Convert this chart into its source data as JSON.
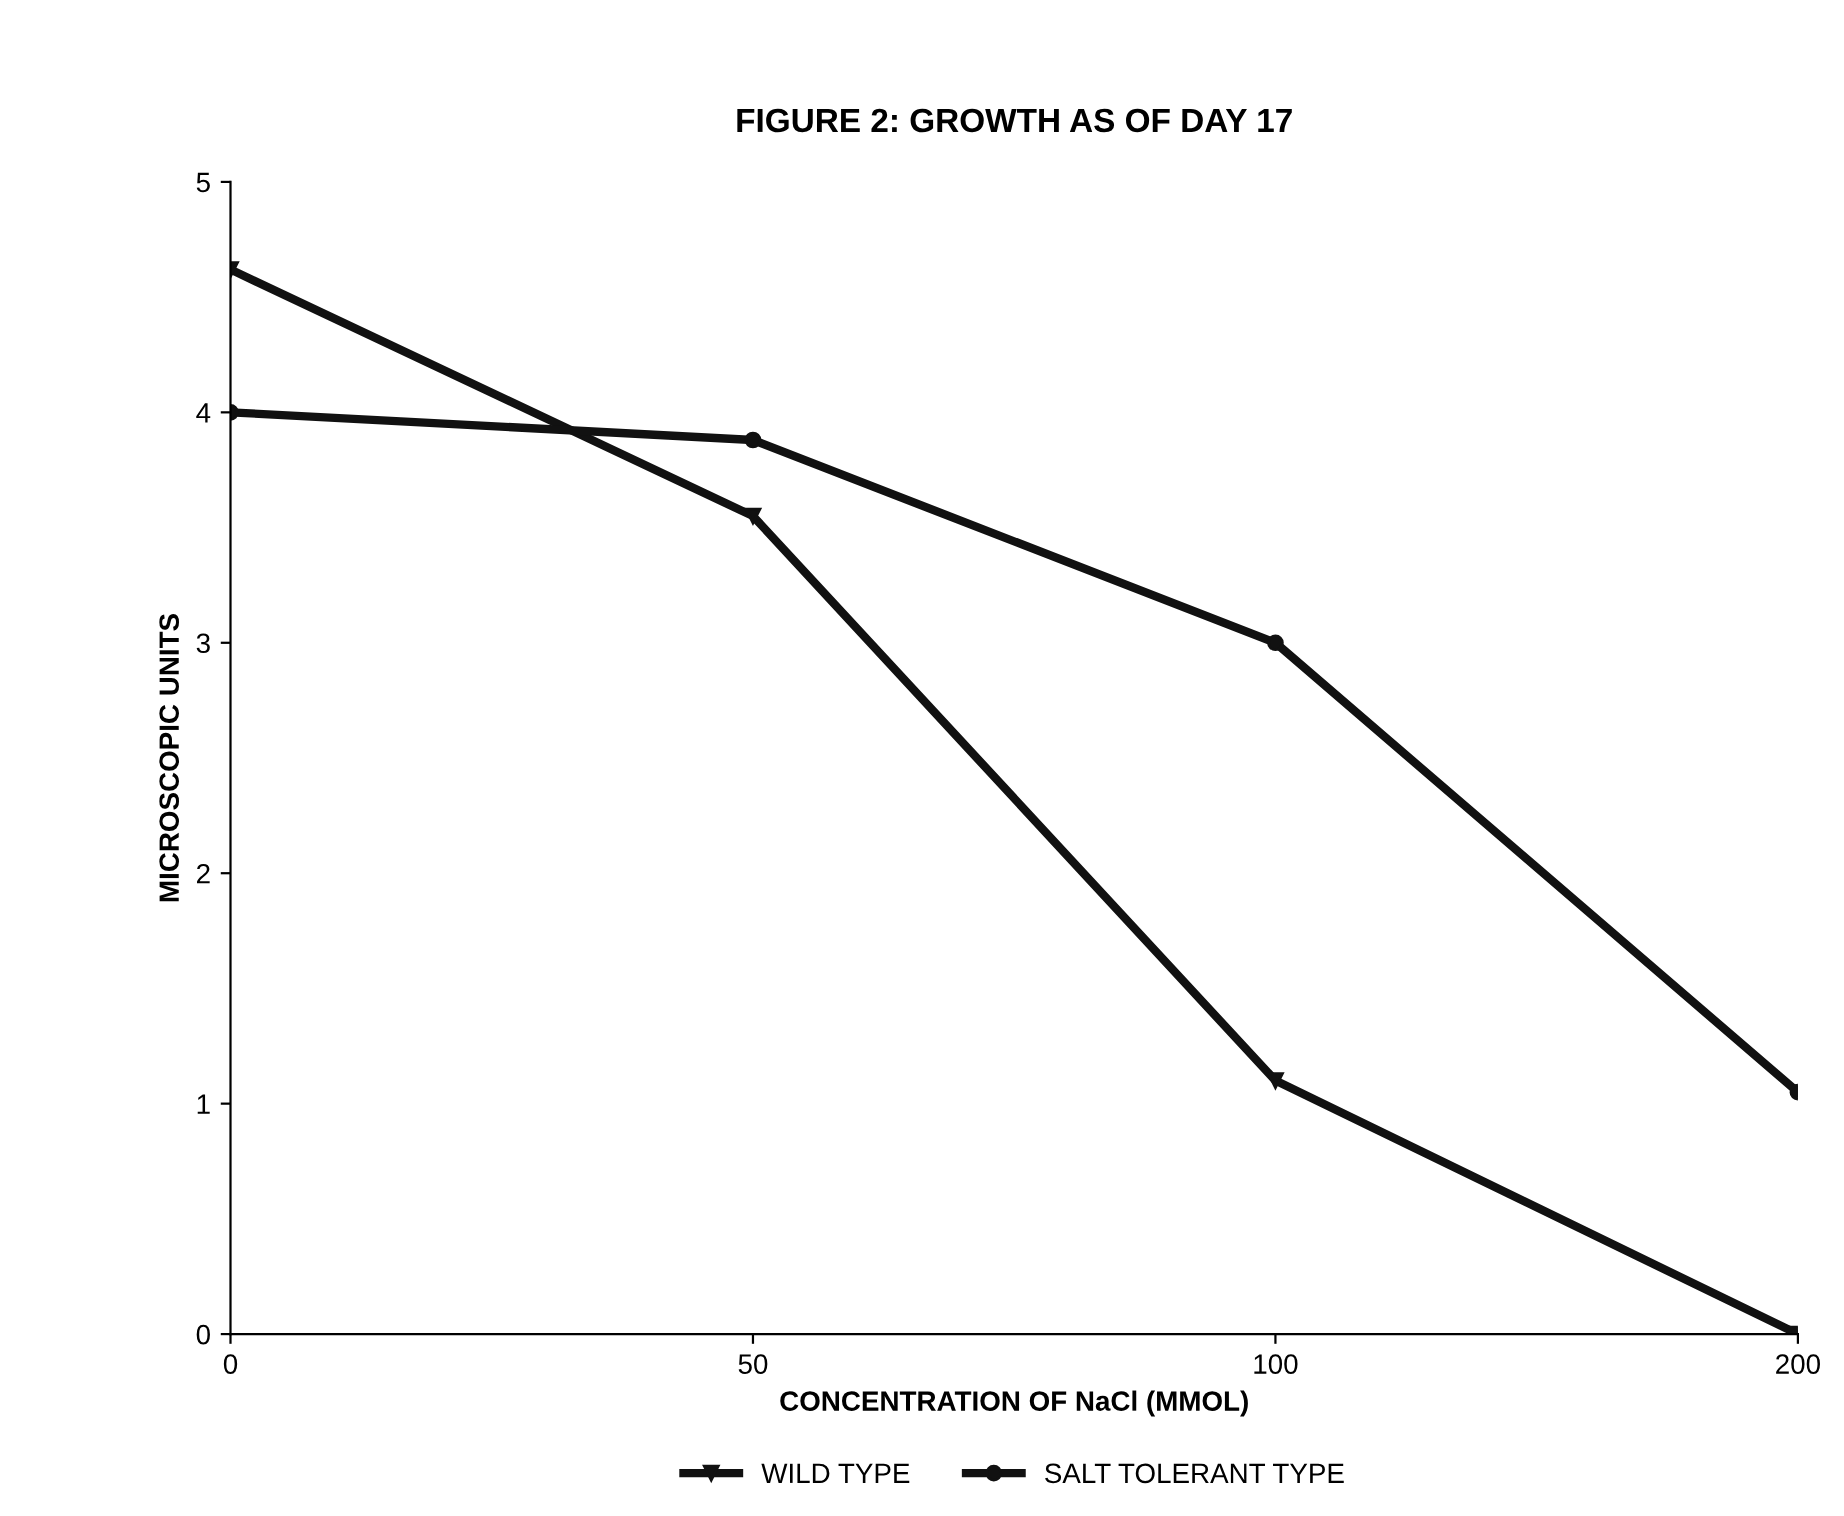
{
  "chart_data": {
    "type": "line",
    "title": "FIGURE 2: GROWTH AS OF DAY 17",
    "xlabel": "CONCENTRATION OF NaCl (MMOL)",
    "ylabel": "MICROSCOPIC UNITS",
    "categories": [
      "0",
      "50",
      "100",
      "200"
    ],
    "series": [
      {
        "name": "WILD TYPE",
        "color": "#111111",
        "marker": "triangle",
        "values": [
          4.62,
          3.55,
          1.1,
          0
        ]
      },
      {
        "name": "SALT TOLERANT TYPE",
        "color": "#111111",
        "marker": "circle",
        "values": [
          4.0,
          3.88,
          3.0,
          1.05
        ]
      }
    ],
    "ylim": [
      0,
      5
    ],
    "yticks": [
      0,
      1,
      2,
      3,
      4,
      5
    ],
    "grid": false,
    "legend": "bottom",
    "line_style": "solid"
  }
}
